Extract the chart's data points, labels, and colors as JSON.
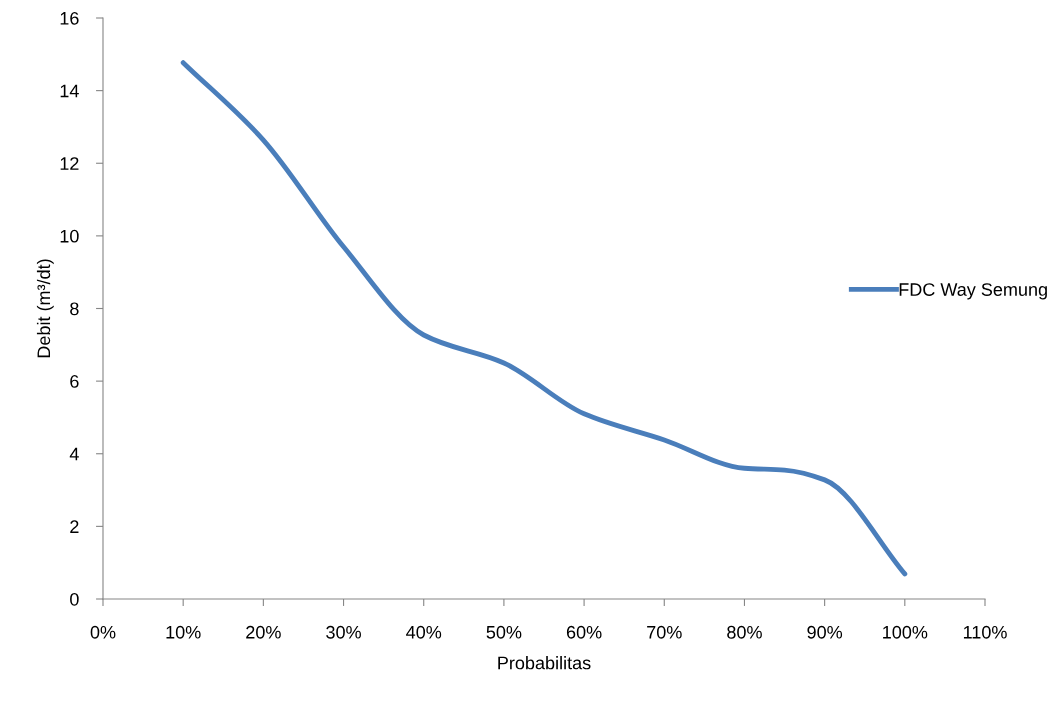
{
  "chart_data": {
    "type": "line",
    "xlabel": "Probabilitas",
    "ylabel": "Debit (m³/dt)",
    "x": [
      10,
      20,
      30,
      40,
      50,
      60,
      70,
      80,
      85,
      90,
      100
    ],
    "series": [
      {
        "name": "FDC Way Semung",
        "color": "#4a7ebb",
        "values": [
          14.77,
          12.64,
          9.7,
          7.27,
          6.5,
          5.1,
          4.38,
          3.6,
          3.55,
          3.28,
          0.69
        ]
      }
    ],
    "xlim": [
      0,
      110
    ],
    "xticks": [
      {
        "value": 0,
        "label": "0%"
      },
      {
        "value": 10,
        "label": "10%"
      },
      {
        "value": 20,
        "label": "20%"
      },
      {
        "value": 30,
        "label": "30%"
      },
      {
        "value": 40,
        "label": "40%"
      },
      {
        "value": 50,
        "label": "50%"
      },
      {
        "value": 60,
        "label": "60%"
      },
      {
        "value": 70,
        "label": "70%"
      },
      {
        "value": 80,
        "label": "80%"
      },
      {
        "value": 90,
        "label": "90%"
      },
      {
        "value": 100,
        "label": "100%"
      },
      {
        "value": 110,
        "label": "110%"
      }
    ],
    "ylim": [
      0,
      16
    ],
    "yticks": [
      0,
      2,
      4,
      6,
      8,
      10,
      12,
      14,
      16
    ],
    "grid": false,
    "legend": "right",
    "marker": "none",
    "line_style": "solid"
  }
}
